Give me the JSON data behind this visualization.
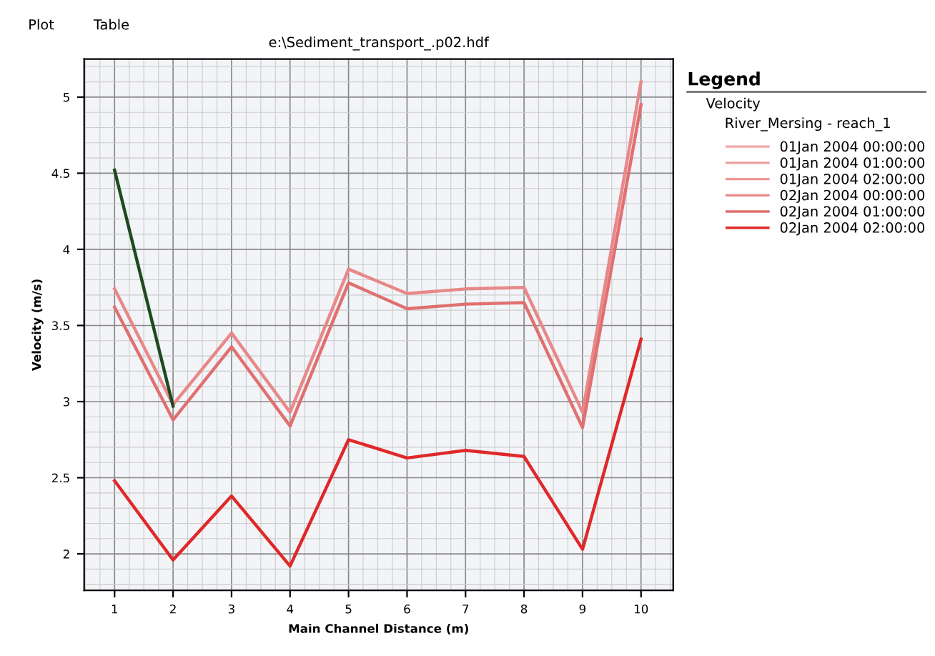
{
  "chart_data": {
    "type": "line",
    "title": "e:\\Sediment_transport_.p02.hdf",
    "xlabel": "Main Channel Distance (m)",
    "ylabel": "Velocity (m/s)",
    "legend_title": "Legend",
    "annotations": [
      "Plot",
      "Table",
      "Velocity",
      "River_Mersing - reach_1"
    ],
    "x": [
      1,
      2,
      3,
      4,
      5,
      6,
      7,
      8,
      9,
      10
    ],
    "series": [
      {
        "name": "01Jan 2004 00:00:00",
        "color": "#f0a8a8",
        "values": [
          null,
          null,
          null,
          null,
          null,
          null,
          null,
          null,
          null,
          null
        ]
      },
      {
        "name": "01Jan 2004 01:00:00",
        "color": "#eea0a0",
        "values": [
          null,
          null,
          null,
          null,
          null,
          null,
          null,
          null,
          null,
          null
        ]
      },
      {
        "name": "01Jan 2004 02:00:00",
        "color": "#ec9898",
        "values": [
          null,
          null,
          null,
          null,
          null,
          null,
          null,
          null,
          null,
          null
        ]
      },
      {
        "name": "02Jan 2004 00:00:00",
        "color": "#e88888",
        "values": [
          3.74,
          2.98,
          3.45,
          2.93,
          3.87,
          3.71,
          3.74,
          3.75,
          2.93,
          5.1
        ]
      },
      {
        "name": "02Jan 2004 01:00:00",
        "color": "#e07070",
        "values": [
          3.62,
          2.88,
          3.36,
          2.84,
          3.78,
          3.61,
          3.64,
          3.65,
          2.83,
          4.95
        ]
      },
      {
        "name": "02Jan 2004 02:00:00",
        "color": "#e02828",
        "values": [
          2.48,
          1.96,
          2.38,
          1.92,
          2.75,
          2.63,
          2.68,
          2.64,
          2.03,
          3.41
        ]
      },
      {
        "color": "#1e4a1e",
        "values": [
          4.52,
          2.97,
          null,
          null,
          null,
          null,
          null,
          null,
          null,
          null
        ]
      }
    ],
    "xlim": [
      0.48,
      10.55
    ],
    "ylim": [
      1.76,
      5.25
    ],
    "xticks": [
      1,
      2,
      3,
      4,
      5,
      6,
      7,
      8,
      9,
      10
    ],
    "yticks": [
      2,
      2.5,
      3,
      3.5,
      4,
      4.5,
      5
    ],
    "grid": true,
    "legend": "right",
    "marker": "none",
    "line_style": "solid"
  }
}
